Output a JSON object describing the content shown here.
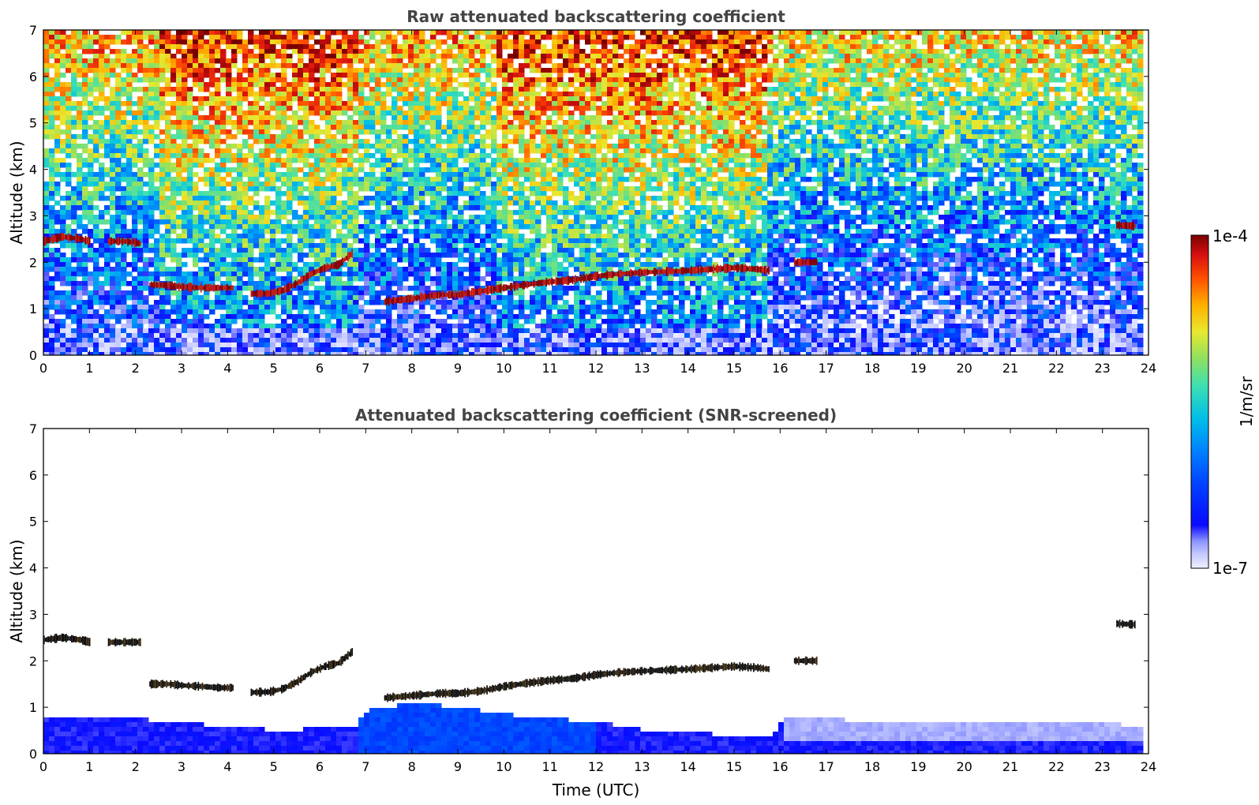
{
  "colormap": {
    "stops": [
      "#eef0ff",
      "#c8ccff",
      "#8f96ff",
      "#0a0aff",
      "#0040ff",
      "#0080ff",
      "#00bfe8",
      "#40e0b0",
      "#90e060",
      "#e8e830",
      "#ffb000",
      "#ff5000",
      "#d81010",
      "#7a0000"
    ],
    "label": "1/m/sr",
    "max_label": "1e-4",
    "min_label": "1e-7"
  },
  "chart_data": [
    {
      "type": "heatmap",
      "title": "Raw attenuated backscattering coefficient",
      "xlabel": "",
      "ylabel": "Altitude (km)",
      "xlim": [
        0,
        24
      ],
      "ylim": [
        0,
        7
      ],
      "xticks": [
        0,
        1,
        2,
        3,
        4,
        5,
        6,
        7,
        8,
        9,
        10,
        11,
        12,
        13,
        14,
        15,
        16,
        17,
        18,
        19,
        20,
        21,
        22,
        23,
        24
      ],
      "yticks": [
        0,
        1,
        2,
        3,
        4,
        5,
        6,
        7
      ],
      "data_end_hour": 23.8,
      "cloud_layers": [
        {
          "x": [
            0.0,
            0.4,
            0.8,
            1.0
          ],
          "y": [
            2.45,
            2.55,
            2.5,
            2.45
          ]
        },
        {
          "x": [
            1.4,
            1.8,
            2.1
          ],
          "y": [
            2.45,
            2.45,
            2.4
          ]
        },
        {
          "x": [
            2.3,
            2.7,
            3.0,
            3.4,
            3.8,
            4.1
          ],
          "y": [
            1.52,
            1.5,
            1.47,
            1.45,
            1.45,
            1.45
          ]
        },
        {
          "x": [
            4.5,
            4.9,
            5.2,
            5.5,
            5.8,
            6.1,
            6.4,
            6.7
          ],
          "y": [
            1.32,
            1.33,
            1.4,
            1.55,
            1.75,
            1.88,
            1.95,
            2.2
          ]
        },
        {
          "x": [
            7.4,
            8.0,
            8.6,
            9.0,
            9.5,
            10.0,
            10.5,
            11.0,
            11.5,
            12.0,
            12.5,
            13.0,
            13.5,
            14.0,
            14.5,
            15.0,
            15.5,
            15.75
          ],
          "y": [
            1.15,
            1.22,
            1.3,
            1.3,
            1.38,
            1.45,
            1.52,
            1.58,
            1.62,
            1.7,
            1.75,
            1.78,
            1.8,
            1.82,
            1.85,
            1.88,
            1.85,
            1.82
          ]
        },
        {
          "x": [
            16.3,
            16.8
          ],
          "y": [
            2.0,
            2.0
          ]
        },
        {
          "x": [
            23.3,
            23.7
          ],
          "y": [
            2.8,
            2.78
          ]
        }
      ]
    },
    {
      "type": "heatmap",
      "title": "Attenuated backscattering coefficient (SNR-screened)",
      "xlabel": "Time (UTC)",
      "ylabel": "Altitude (km)",
      "xlim": [
        0,
        24
      ],
      "ylim": [
        0,
        7
      ],
      "xticks": [
        0,
        1,
        2,
        3,
        4,
        5,
        6,
        7,
        8,
        9,
        10,
        11,
        12,
        13,
        14,
        15,
        16,
        17,
        18,
        19,
        20,
        21,
        22,
        23,
        24
      ],
      "yticks": [
        0,
        1,
        2,
        3,
        4,
        5,
        6,
        7
      ],
      "data_end_hour": 23.8,
      "boundary_layer_top": {
        "x": [
          0,
          1,
          2,
          3,
          4,
          5,
          6,
          6.7,
          7.0,
          8.0,
          9.0,
          10.0,
          11.0,
          12.0,
          13.0,
          14.0,
          15.0,
          15.8,
          16.0,
          17.0,
          18.0,
          19.0,
          20.0,
          21.0,
          22.0,
          23.0,
          23.8
        ],
        "y": [
          0.85,
          0.85,
          0.8,
          0.7,
          0.65,
          0.55,
          0.6,
          0.65,
          1.0,
          1.15,
          1.05,
          0.9,
          0.8,
          0.75,
          0.55,
          0.5,
          0.45,
          0.45,
          0.85,
          0.8,
          0.75,
          0.7,
          0.7,
          0.75,
          0.7,
          0.7,
          0.65
        ]
      },
      "cloud_layers": [
        {
          "x": [
            0.0,
            0.4,
            0.8,
            1.0
          ],
          "y": [
            2.45,
            2.5,
            2.45,
            2.4
          ]
        },
        {
          "x": [
            1.4,
            1.8,
            2.1
          ],
          "y": [
            2.4,
            2.4,
            2.4
          ]
        },
        {
          "x": [
            2.3,
            2.7,
            3.0,
            3.4,
            3.8,
            4.1
          ],
          "y": [
            1.5,
            1.5,
            1.47,
            1.45,
            1.42,
            1.42
          ]
        },
        {
          "x": [
            4.5,
            4.9,
            5.2,
            5.5,
            5.8,
            6.1,
            6.4,
            6.7
          ],
          "y": [
            1.32,
            1.33,
            1.4,
            1.55,
            1.75,
            1.88,
            1.95,
            2.2
          ]
        },
        {
          "x": [
            7.4,
            8.0,
            8.6,
            9.0,
            9.5,
            10.0,
            10.5,
            11.0,
            11.5,
            12.0,
            12.5,
            13.0,
            13.5,
            14.0,
            14.5,
            15.0,
            15.5,
            15.75
          ],
          "y": [
            1.2,
            1.25,
            1.3,
            1.3,
            1.35,
            1.45,
            1.52,
            1.58,
            1.62,
            1.7,
            1.75,
            1.78,
            1.8,
            1.82,
            1.85,
            1.88,
            1.85,
            1.82
          ]
        },
        {
          "x": [
            16.3,
            16.8
          ],
          "y": [
            2.0,
            2.0
          ]
        },
        {
          "x": [
            23.3,
            23.7
          ],
          "y": [
            2.8,
            2.78
          ]
        }
      ]
    }
  ]
}
